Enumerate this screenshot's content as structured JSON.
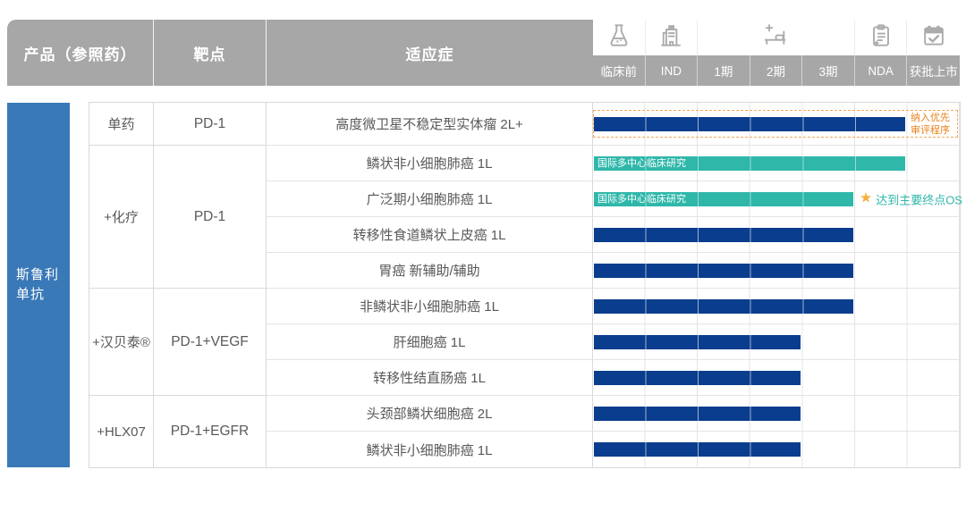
{
  "header": {
    "columns": {
      "product": "产品（参照药）",
      "target": "靶点",
      "indication": "适应症"
    },
    "phases": [
      {
        "label": "临床前",
        "icon": "flask-icon"
      },
      {
        "label": "IND",
        "icon": "hospital-building-icon"
      },
      {
        "label": "1期",
        "icon": "hospital-bed-icon"
      },
      {
        "label": "2期",
        "icon": "hospital-bed-icon"
      },
      {
        "label": "3期",
        "icon": "hospital-bed-icon"
      },
      {
        "label": "NDA",
        "icon": "clipboard-icon"
      },
      {
        "label": "获批上市",
        "icon": "calendar-check-icon"
      }
    ]
  },
  "product": {
    "name": "斯鲁利单抗",
    "lines": [
      "斯鲁利",
      "单抗"
    ]
  },
  "colors": {
    "navy_bar": "#0A3D8D",
    "teal_bar": "#2FB7AA",
    "sidebar_blue": "#3A79B7",
    "header_gray": "#A7A7A7",
    "orange_text": "#E8821E",
    "star_gold": "#F5B13D",
    "grid_line": "#E4E4E4",
    "body_text": "#595959"
  },
  "chart_data": {
    "type": "bar",
    "subtype": "pipeline-gantt",
    "orientation": "horizontal",
    "title": "",
    "categories": [
      "临床前",
      "IND",
      "1期",
      "2期",
      "3期",
      "NDA",
      "获批上市"
    ],
    "product": "斯鲁利单抗",
    "groups": [
      {
        "combo": "单药",
        "target": "PD-1",
        "rows": [
          {
            "indication": "高度微卫星不稳定型实体瘤 2L+",
            "bar": {
              "color": "navy",
              "phases": 6,
              "phase_reached": "NDA"
            },
            "priority_review": {
              "text": "纳入优先审评程序",
              "lines": [
                "纳入优先",
                "审评程序"
              ]
            }
          }
        ]
      },
      {
        "combo": "+化疗",
        "target": "PD-1",
        "rows": [
          {
            "indication": "鳞状非小细胞肺癌 1L",
            "bar": {
              "color": "teal",
              "phases": 6,
              "phase_reached": "NDA",
              "label": "国际多中心临床研究"
            }
          },
          {
            "indication": "广泛期小细胞肺癌 1L",
            "bar": {
              "color": "teal",
              "phases": 5,
              "phase_reached": "3期",
              "label": "国际多中心临床研究"
            },
            "milestone": {
              "icon": "star-icon",
              "text": "达到主要终点OS"
            }
          },
          {
            "indication": "转移性食道鳞状上皮癌 1L",
            "bar": {
              "color": "navy",
              "phases": 5,
              "phase_reached": "3期"
            }
          },
          {
            "indication": "胃癌 新辅助/辅助",
            "bar": {
              "color": "navy",
              "phases": 5,
              "phase_reached": "3期"
            }
          }
        ]
      },
      {
        "combo": "+汉贝泰®",
        "target": "PD-1+VEGF",
        "rows": [
          {
            "indication": "非鳞状非小细胞肺癌 1L",
            "bar": {
              "color": "navy",
              "phases": 5,
              "phase_reached": "3期"
            }
          },
          {
            "indication": "肝细胞癌 1L",
            "bar": {
              "color": "navy",
              "phases": 4,
              "phase_reached": "2期"
            }
          },
          {
            "indication": "转移性结直肠癌 1L",
            "bar": {
              "color": "navy",
              "phases": 4,
              "phase_reached": "2期"
            }
          }
        ]
      },
      {
        "combo": "+HLX07",
        "target": "PD-1+EGFR",
        "rows": [
          {
            "indication": "头颈部鳞状细胞癌 2L",
            "bar": {
              "color": "navy",
              "phases": 4,
              "phase_reached": "2期"
            }
          },
          {
            "indication": "鳞状非小细胞肺癌 1L",
            "bar": {
              "color": "navy",
              "phases": 4,
              "phase_reached": "2期"
            }
          }
        ]
      }
    ]
  }
}
